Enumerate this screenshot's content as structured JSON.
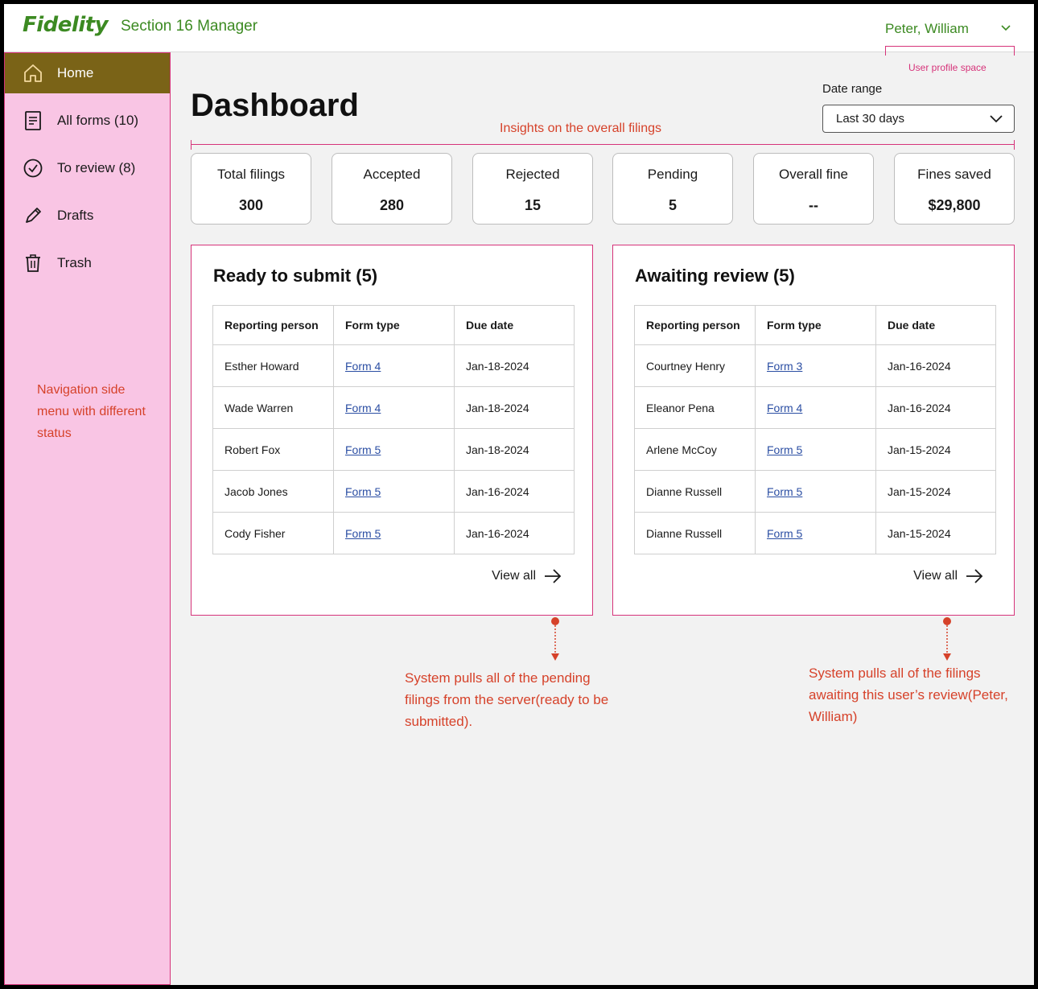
{
  "header": {
    "logo": "Fidelity",
    "app_name": "Section 16 Manager",
    "user_name": "Peter, William",
    "profile_note": "User profile space"
  },
  "sidebar": {
    "items": [
      {
        "label": "Home",
        "icon": "home-icon"
      },
      {
        "label": "All forms (10)",
        "icon": "document-icon"
      },
      {
        "label": "To review (8)",
        "icon": "check-circle-icon"
      },
      {
        "label": "Drafts",
        "icon": "pencil-icon"
      },
      {
        "label": "Trash",
        "icon": "trash-icon"
      }
    ],
    "note": "Navigation side menu with different status"
  },
  "main": {
    "title": "Dashboard",
    "date_range_label": "Date range",
    "date_range_value": "Last 30 days",
    "insight_note": "Insights on the overall filings",
    "stats": [
      {
        "label": "Total filings",
        "value": "300"
      },
      {
        "label": "Accepted",
        "value": "280"
      },
      {
        "label": "Rejected",
        "value": "15"
      },
      {
        "label": "Pending",
        "value": "5"
      },
      {
        "label": "Overall fine",
        "value": "--"
      },
      {
        "label": "Fines saved",
        "value": "$29,800"
      }
    ],
    "panels": [
      {
        "title": "Ready to submit (5)",
        "columns": [
          "Reporting person",
          "Form type",
          "Due date"
        ],
        "rows": [
          [
            "Esther Howard",
            "Form 4",
            "Jan-18-2024"
          ],
          [
            "Wade Warren",
            "Form 4",
            "Jan-18-2024"
          ],
          [
            "Robert Fox",
            "Form 5",
            "Jan-18-2024"
          ],
          [
            "Jacob Jones",
            "Form 5",
            "Jan-16-2024"
          ],
          [
            "Cody Fisher",
            "Form 5",
            "Jan-16-2024"
          ]
        ],
        "view_all": "View all",
        "note": "System pulls all of the pending filings from the server(ready to be submitted)."
      },
      {
        "title": "Awaiting review (5)",
        "columns": [
          "Reporting person",
          "Form type",
          "Due date"
        ],
        "rows": [
          [
            "Courtney Henry",
            "Form 3",
            "Jan-16-2024"
          ],
          [
            "Eleanor Pena",
            "Form 4",
            "Jan-16-2024"
          ],
          [
            "Arlene McCoy",
            "Form 5",
            "Jan-15-2024"
          ],
          [
            "Dianne Russell",
            "Form 5",
            "Jan-15-2024"
          ],
          [
            "Dianne Russell",
            "Form 5",
            "Jan-15-2024"
          ]
        ],
        "view_all": "View all",
        "note": "System pulls all of the filings awaiting this user’s review(Peter, William)"
      }
    ]
  },
  "colors": {
    "brand_green": "#3c8a22",
    "sidebar_bg": "#f9c5e4",
    "active_nav": "#7a6317",
    "annotation_red": "#d6422a",
    "annotation_pink": "#d6337a",
    "link_blue": "#2b4ea3"
  }
}
